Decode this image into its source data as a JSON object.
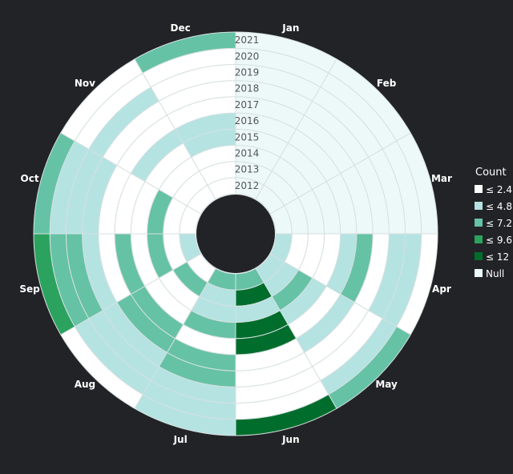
{
  "chart_data": {
    "type": "radial-heatmap",
    "title": "",
    "months": [
      "Jan",
      "Feb",
      "Mar",
      "Apr",
      "May",
      "Jun",
      "Jul",
      "Aug",
      "Sep",
      "Oct",
      "Nov",
      "Dec"
    ],
    "years": [
      "2012",
      "2013",
      "2014",
      "2015",
      "2016",
      "2017",
      "2018",
      "2019",
      "2020",
      "2021"
    ],
    "legend": {
      "title": "Count",
      "items": [
        {
          "label": "≤ 2.4",
          "color": "#ffffff"
        },
        {
          "label": "≤ 4.8",
          "color": "#b4e3e2"
        },
        {
          "label": "≤ 7.2",
          "color": "#66c2a4"
        },
        {
          "label": "≤ 9.6",
          "color": "#2ca25f"
        },
        {
          "label": "≤ 12",
          "color": "#006d2c"
        },
        {
          "label": "Null",
          "color": "#edf8f8"
        }
      ]
    },
    "null_color": "#edf8f8",
    "grid_color": "#d6e0e0",
    "background": "#222326",
    "values": [
      [
        null,
        null,
        null,
        4,
        4,
        6,
        5,
        1,
        4,
        2,
        1,
        1
      ],
      [
        null,
        null,
        null,
        1,
        3,
        11,
        3,
        5,
        1,
        1,
        1,
        1
      ],
      [
        null,
        null,
        null,
        1,
        6,
        4,
        4,
        1,
        6,
        6,
        1,
        1
      ],
      [
        null,
        null,
        null,
        2,
        4,
        11,
        7,
        1,
        1,
        1,
        1,
        4
      ],
      [
        null,
        null,
        null,
        4,
        1,
        11,
        1,
        7,
        7,
        1,
        4,
        4
      ],
      [
        null,
        null,
        null,
        7,
        4,
        1,
        7,
        7,
        1,
        1,
        1,
        1
      ],
      [
        null,
        null,
        null,
        1,
        1,
        1,
        7,
        4,
        4,
        4,
        1,
        1
      ],
      [
        null,
        null,
        null,
        4,
        1,
        1,
        4,
        4,
        6,
        4,
        4,
        1
      ],
      [
        null,
        null,
        null,
        4,
        4,
        1,
        4,
        4,
        7,
        4,
        1,
        1
      ],
      [
        null,
        null,
        null,
        1,
        6,
        11,
        4,
        1,
        9,
        7,
        1,
        6
      ]
    ]
  }
}
